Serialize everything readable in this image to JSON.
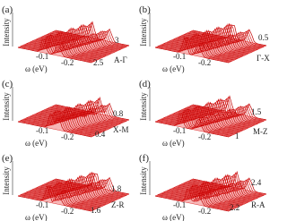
{
  "panels": [
    {
      "label": "(a)",
      "y_label": "Intensity",
      "x_label": "ω (eV)",
      "x_ticks": [
        "-0.1",
        "-0.2"
      ],
      "k_label": "A-Γ",
      "k_ticks": [
        "2.5",
        "3"
      ]
    },
    {
      "label": "(b)",
      "y_label": "Intensity",
      "x_label": "ω (eV)",
      "x_ticks": [
        "-0.1",
        "-0.2"
      ],
      "k_label": "Γ-X",
      "k_ticks": [
        "0.5"
      ]
    },
    {
      "label": "(c)",
      "y_label": "Intensity",
      "x_label": "ω (eV)",
      "x_ticks": [
        "-0.1",
        "-0.2"
      ],
      "k_label": "X-M",
      "k_ticks": [
        "0.4",
        "0.8"
      ]
    },
    {
      "label": "(d)",
      "y_label": "Intensity",
      "x_label": "ω (eV)",
      "x_ticks": [
        "-0.1",
        "-0.2"
      ],
      "k_label": "M-Z",
      "k_ticks": [
        "1",
        "1.5"
      ]
    },
    {
      "label": "(e)",
      "y_label": "Intensity",
      "x_label": "ω (eV)",
      "x_ticks": [
        "-0.1",
        "-0.2"
      ],
      "k_label": "Z-R",
      "k_ticks": [
        "1.6",
        "1.8"
      ]
    },
    {
      "label": "(f)",
      "y_label": "Intensity",
      "x_label": "ω (eV)",
      "x_ticks": [
        "-0.1",
        "-0.2"
      ],
      "k_label": "R-A",
      "k_ticks": [
        "2.2",
        "2.4"
      ]
    }
  ]
}
